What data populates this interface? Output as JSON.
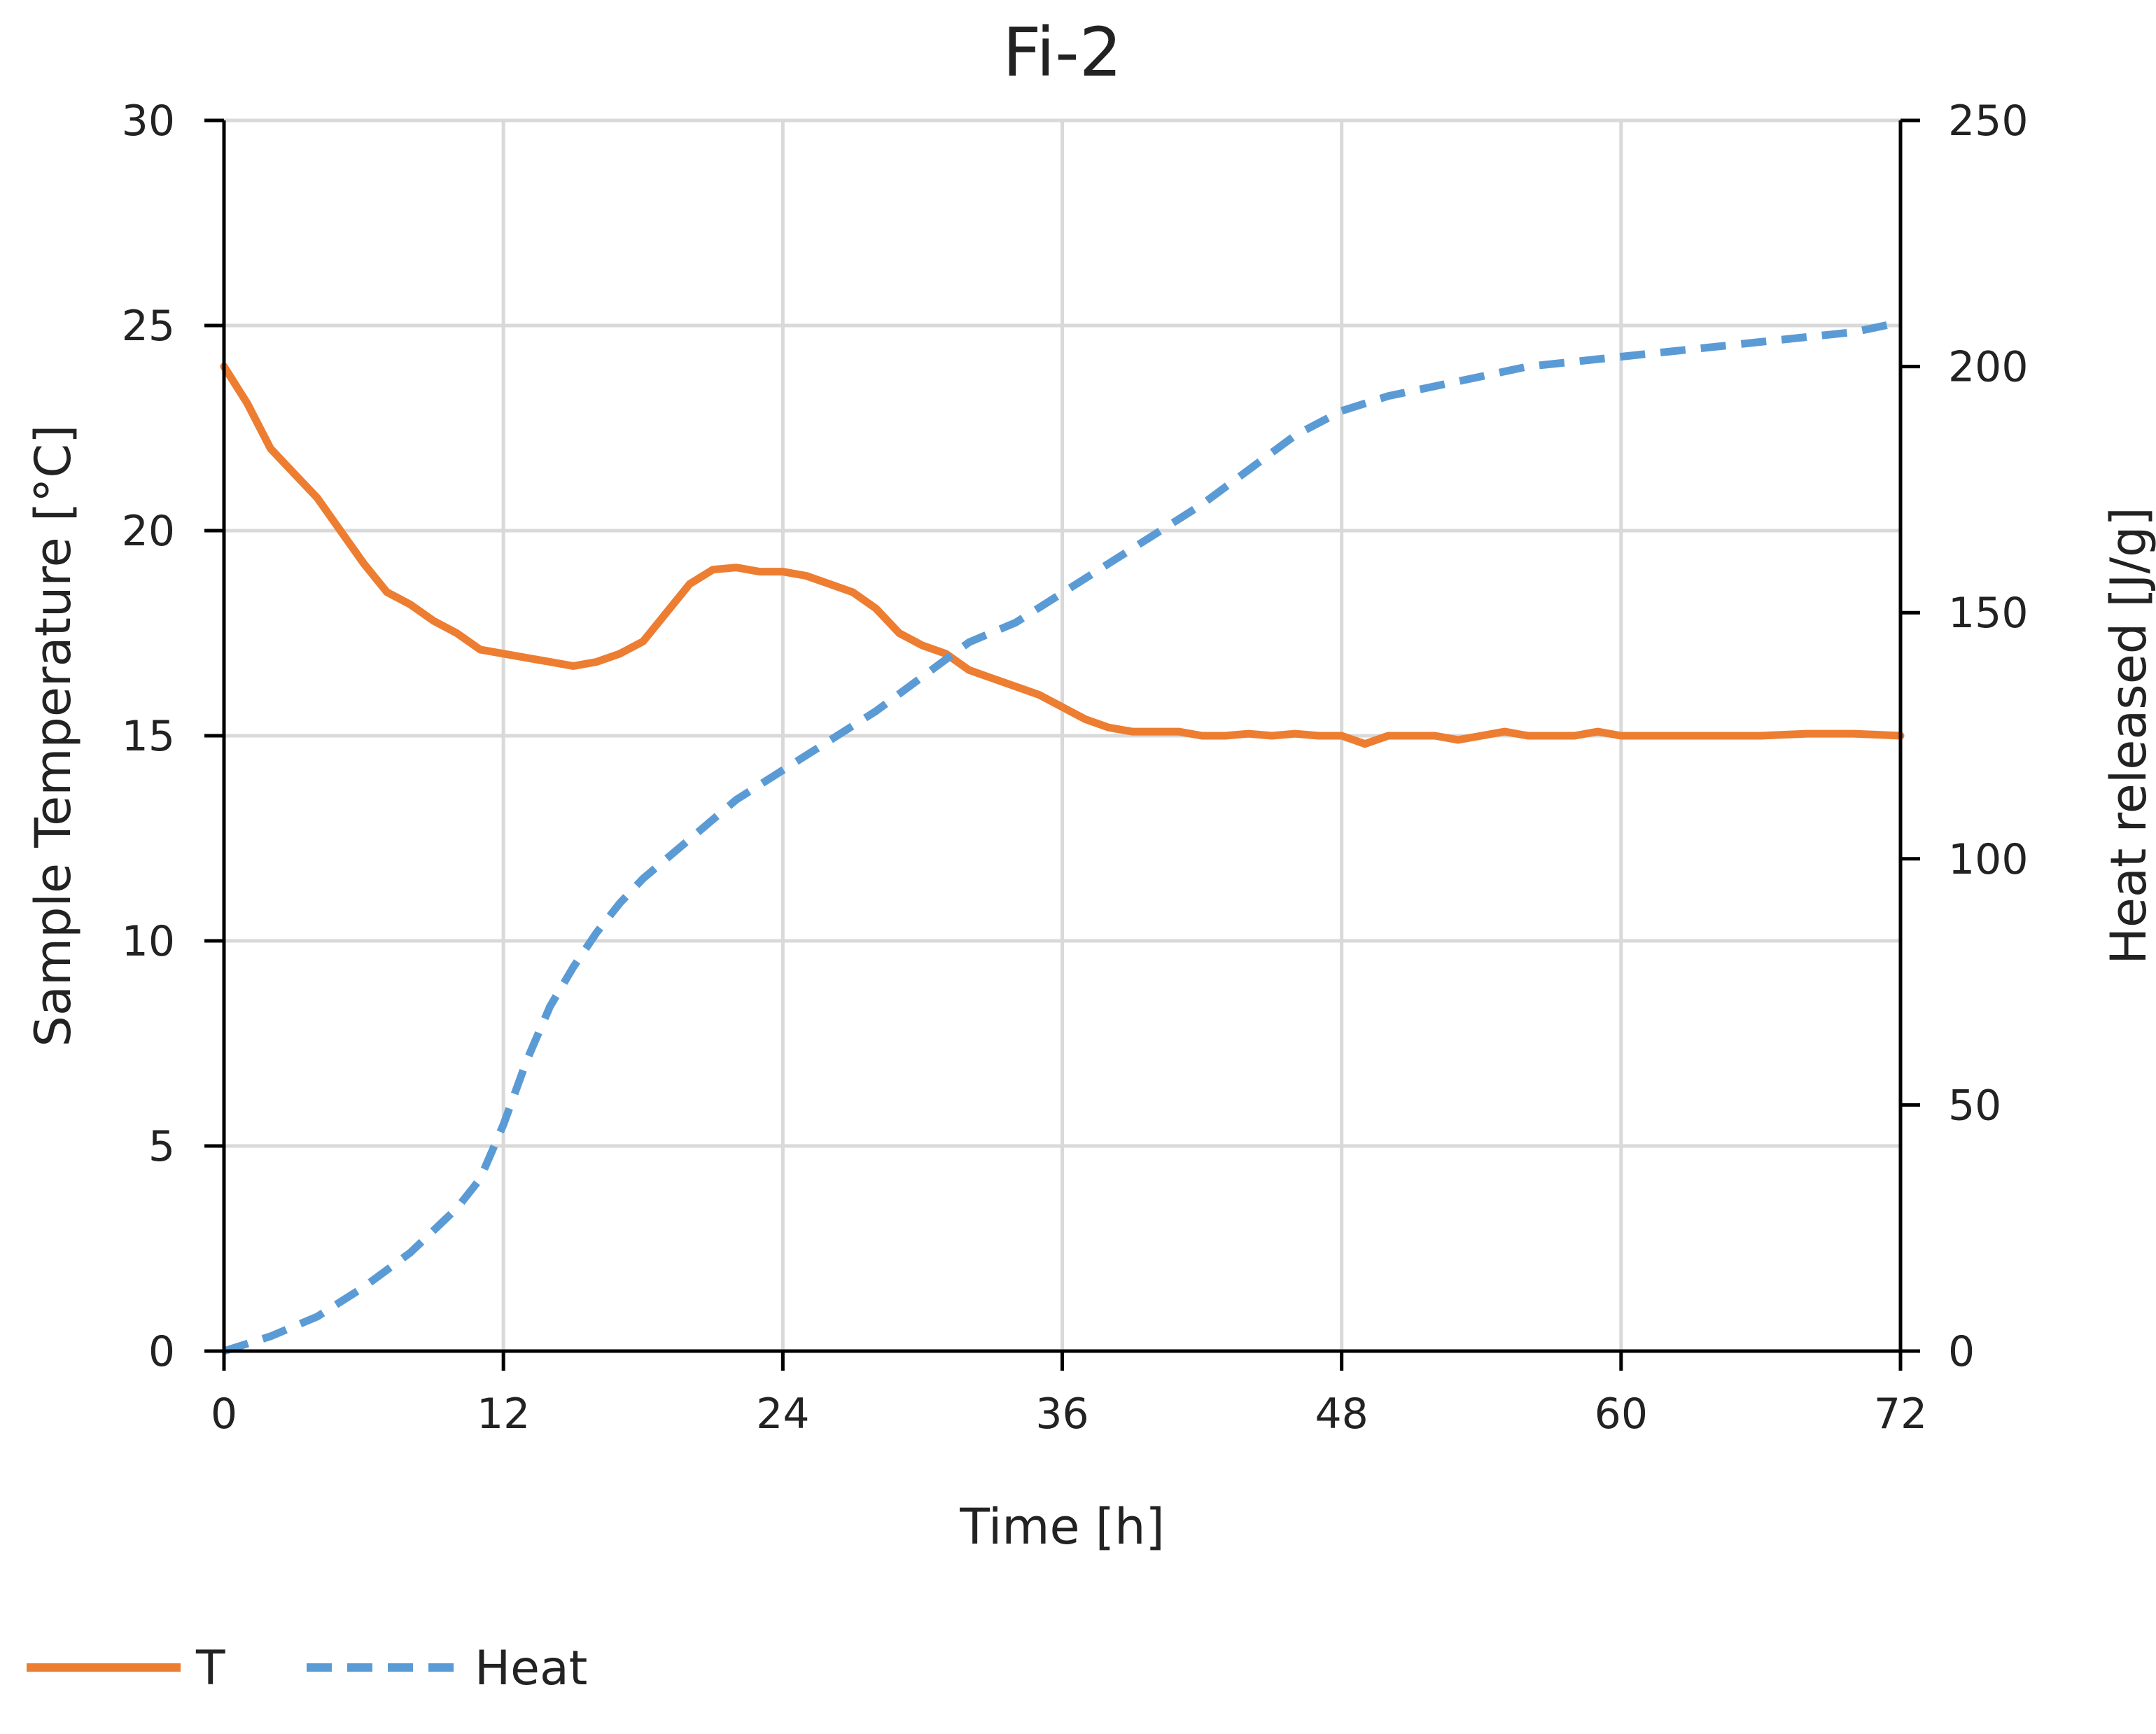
{
  "chart_data": {
    "type": "line",
    "title": "Fi-2",
    "xlabel": "Time [h]",
    "ylabel_left": "Sample Temperature [°C]",
    "ylabel_right": "Heat released [J/g]",
    "xlim": [
      0,
      72
    ],
    "ylim_left": [
      0,
      30
    ],
    "ylim_right": [
      0,
      250
    ],
    "xticks": [
      0,
      12,
      24,
      36,
      48,
      60,
      72
    ],
    "yticks_left": [
      0,
      5,
      10,
      15,
      20,
      25,
      30
    ],
    "yticks_right": [
      0,
      50,
      100,
      150,
      200,
      250
    ],
    "grid": true,
    "legend_position": "bottom-left",
    "series": [
      {
        "name": "T",
        "axis": "left",
        "color": "#ED7D31",
        "style": "solid",
        "x": [
          0,
          1,
          2,
          3,
          4,
          5,
          6,
          7,
          8,
          9,
          10,
          11,
          12,
          13,
          14,
          15,
          16,
          17,
          18,
          19,
          20,
          21,
          22,
          23,
          24,
          25,
          26,
          27,
          28,
          29,
          30,
          31,
          32,
          33,
          34,
          35,
          36,
          37,
          38,
          39,
          40,
          41,
          42,
          43,
          44,
          45,
          46,
          47,
          48,
          49,
          50,
          51,
          52,
          53,
          54,
          55,
          56,
          57,
          58,
          59,
          60,
          62,
          64,
          66,
          68,
          70,
          72
        ],
        "values": [
          24.0,
          23.1,
          22.0,
          21.4,
          20.8,
          20.0,
          19.2,
          18.5,
          18.2,
          17.8,
          17.5,
          17.1,
          17.0,
          16.9,
          16.8,
          16.7,
          16.8,
          17.0,
          17.3,
          18.0,
          18.7,
          19.05,
          19.1,
          19.0,
          19.0,
          18.9,
          18.7,
          18.5,
          18.1,
          17.5,
          17.2,
          17.0,
          16.6,
          16.4,
          16.2,
          16.0,
          15.7,
          15.4,
          15.2,
          15.1,
          15.1,
          15.1,
          15.0,
          15.0,
          15.05,
          15.0,
          15.05,
          15.0,
          15.0,
          14.8,
          15.0,
          15.0,
          15.0,
          14.9,
          15.0,
          15.1,
          15.0,
          15.0,
          15.0,
          15.1,
          15.0,
          15.0,
          15.0,
          15.0,
          15.05,
          15.05,
          15.0
        ]
      },
      {
        "name": "Heat",
        "axis": "right",
        "color": "#5B9BD5",
        "style": "dashed",
        "x": [
          0,
          2,
          4,
          6,
          8,
          10,
          11,
          12,
          13,
          14,
          15,
          16,
          17,
          18,
          19,
          20,
          22,
          24,
          26,
          28,
          30,
          32,
          34,
          36,
          38,
          40,
          42,
          44,
          46,
          48,
          50,
          52,
          54,
          56,
          58,
          60,
          62,
          64,
          66,
          68,
          70,
          72
        ],
        "values": [
          0,
          3,
          7,
          13,
          20,
          29,
          35,
          46,
          59,
          70,
          78,
          85,
          91,
          96,
          100,
          104,
          112,
          118,
          124,
          130,
          137,
          144,
          148,
          154,
          160,
          166,
          172,
          179,
          186,
          191,
          194,
          196,
          198,
          200,
          201,
          202,
          203,
          204,
          205,
          206,
          207,
          209
        ]
      }
    ]
  }
}
